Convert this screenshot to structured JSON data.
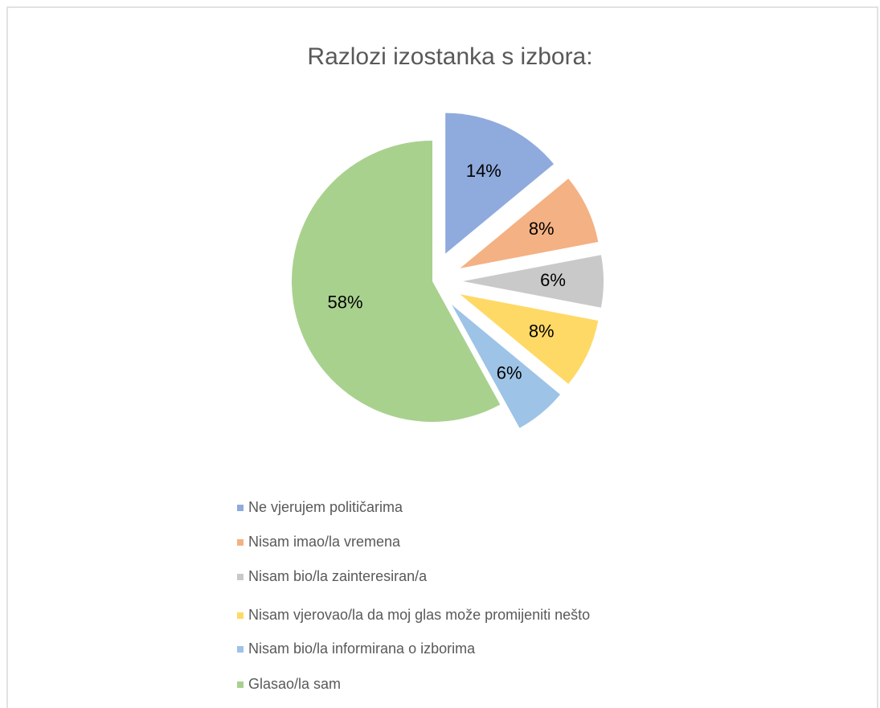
{
  "chart_data": {
    "type": "pie",
    "title": "Razlozi izostanka s izbora:",
    "categories": [
      "Ne vjerujem političarima",
      "Nisam imao/la vremena",
      "Nisam bio/la zainteresiran/a",
      "Nisam vjerovao/la da moj glas može promijeniti nešto",
      "Nisam bio/la informirana o izborima",
      "Glasao/la sam"
    ],
    "values": [
      14,
      8,
      6,
      8,
      6,
      58
    ],
    "value_labels": [
      "14%",
      "8%",
      "6%",
      "8%",
      "6%",
      "58%"
    ],
    "colors": [
      "#8faadc",
      "#f4b183",
      "#c9c9c9",
      "#ffd966",
      "#9dc3e6",
      "#a9d18e"
    ],
    "legend": "bottom"
  }
}
